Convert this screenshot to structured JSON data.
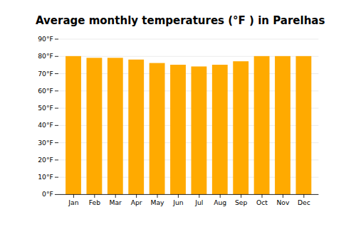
{
  "chart_data": {
    "type": "bar",
    "title": "Average monthly temperatures (°F ) in Parelhas",
    "categories": [
      "Jan",
      "Feb",
      "Mar",
      "Apr",
      "May",
      "Jun",
      "Jul",
      "Aug",
      "Sep",
      "Oct",
      "Nov",
      "Dec"
    ],
    "values": [
      80,
      79,
      79,
      78,
      76,
      75,
      74,
      75,
      77,
      80,
      80,
      80
    ],
    "color": "#FFAA00",
    "ylim": [
      0,
      90
    ],
    "yticks": [
      {
        "value": 0,
        "label": "0°F"
      },
      {
        "value": 10,
        "label": "10°F"
      },
      {
        "value": 20,
        "label": "20°F"
      },
      {
        "value": 30,
        "label": "30°F"
      },
      {
        "value": 40,
        "label": "40°F"
      },
      {
        "value": 50,
        "label": "50°F"
      },
      {
        "value": 60,
        "label": "60°F"
      },
      {
        "value": 70,
        "label": "70°F"
      },
      {
        "value": 80,
        "label": "80°F"
      },
      {
        "value": 90,
        "label": "90°F"
      }
    ],
    "grid": true
  }
}
